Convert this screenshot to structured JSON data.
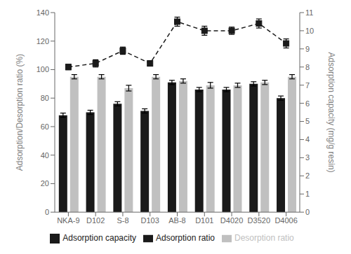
{
  "chart_data": {
    "type": "bar",
    "categories": [
      "NKA-9",
      "D102",
      "S-8",
      "D103",
      "AB-8",
      "D101",
      "D4020",
      "D3520",
      "D4006"
    ],
    "series": [
      {
        "name": "Adsorption ratio",
        "color": "#1a1a1a",
        "values": [
          68,
          70,
          76,
          71,
          91,
          86,
          86,
          90,
          80
        ],
        "errors": [
          1.5,
          1.5,
          1.5,
          1.5,
          1.5,
          1.5,
          1.5,
          1.5,
          1.5
        ]
      },
      {
        "name": "Desorption ratio",
        "color": "#c0c0c0",
        "values": [
          95,
          95,
          87,
          95,
          92,
          89,
          89,
          91,
          95
        ],
        "errors": [
          1.5,
          1.5,
          2.0,
          1.5,
          1.5,
          2.0,
          1.5,
          1.5,
          1.5
        ]
      },
      {
        "name": "Adsorption capacity",
        "type": "line",
        "axis": "y2",
        "color": "#1a1a1a",
        "marker": "square",
        "line_style": "dashed",
        "values": [
          8.0,
          8.2,
          8.9,
          8.2,
          10.5,
          10.0,
          10.0,
          10.4,
          9.3
        ],
        "errors": [
          0.15,
          0.2,
          0.2,
          0.15,
          0.25,
          0.25,
          0.2,
          0.25,
          0.25
        ]
      }
    ],
    "y_label": "Adsorption/Desorption ratio (%)",
    "y2_label": "Adsorption capacity (mg/g resin)",
    "ylim": [
      0,
      140
    ],
    "yticks": [
      0,
      20,
      40,
      60,
      80,
      100,
      120,
      140
    ],
    "y2lim": [
      0,
      11
    ],
    "y2ticks": [
      0,
      1,
      2,
      3,
      4,
      5,
      6,
      7,
      8,
      9,
      10,
      11
    ],
    "legend": "bottom",
    "grid": false
  }
}
